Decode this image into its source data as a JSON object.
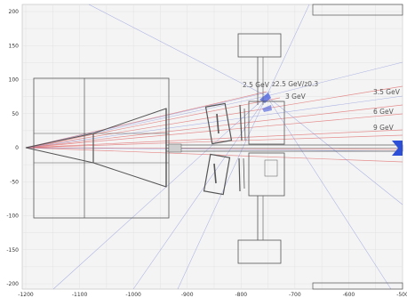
{
  "figure": {
    "x_ticks": [
      "-1200",
      "-1100",
      "-1000",
      "-900",
      "-800",
      "-700",
      "-600",
      "-500"
    ],
    "y_ticks": [
      "200",
      "150",
      "100",
      "50",
      "0",
      "-50",
      "-100",
      "-150",
      "-200"
    ],
    "xlim": [
      -1200,
      -500
    ],
    "ylim": [
      -210,
      210
    ],
    "grid": true,
    "annotations": {
      "e_2_5": "2.5 GeV",
      "e_z": "z2.5 GeV/z0.3",
      "e_3": "3 GeV",
      "e_3_5": "3.5 GeV",
      "e_6": "6 GeV",
      "e_9": "9 GeV"
    },
    "colors": {
      "background": "#ffffff",
      "plot_background": "#f4f4f4",
      "grid": "#e2e2e2",
      "structure": "#555555",
      "red_rays": "#e06c6c",
      "blue_rays": "#7a86d6",
      "beam_marker": "#2d4fd8"
    }
  }
}
